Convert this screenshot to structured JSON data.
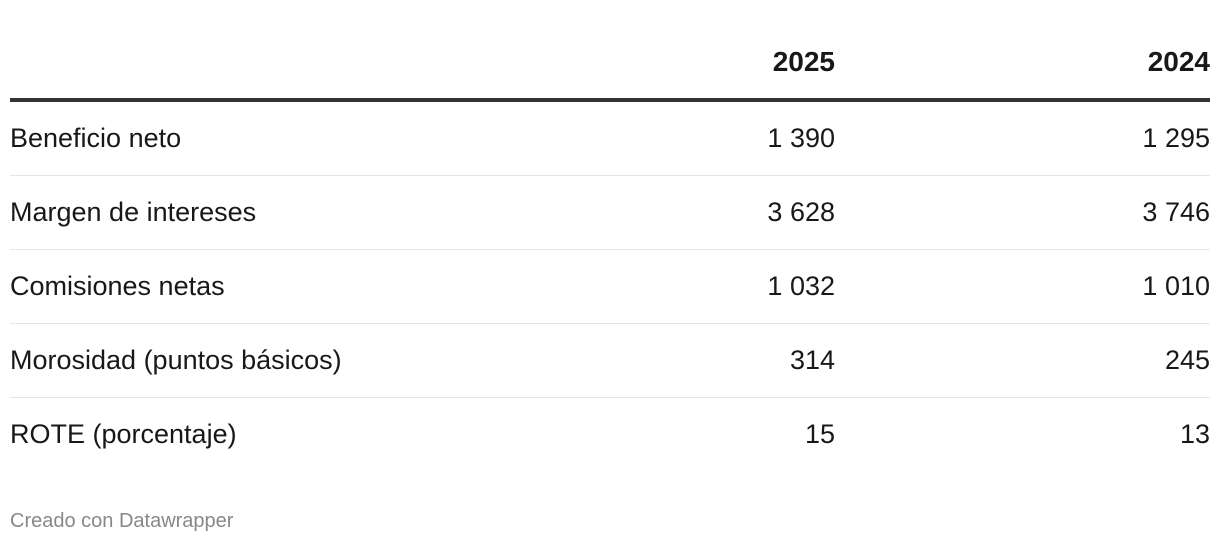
{
  "table": {
    "header": [
      "",
      "2025",
      "2024"
    ],
    "rows": [
      [
        "Beneficio neto",
        "1 390",
        "1 295"
      ],
      [
        "Margen de intereses",
        "3 628",
        "3 746"
      ],
      [
        "Comisiones netas",
        "1 032",
        "1 010"
      ],
      [
        "Morosidad (puntos básicos)",
        "314",
        "245"
      ],
      [
        "ROTE (porcentaje)",
        "15",
        "13"
      ]
    ]
  },
  "footer": "Creado con Datawrapper"
}
